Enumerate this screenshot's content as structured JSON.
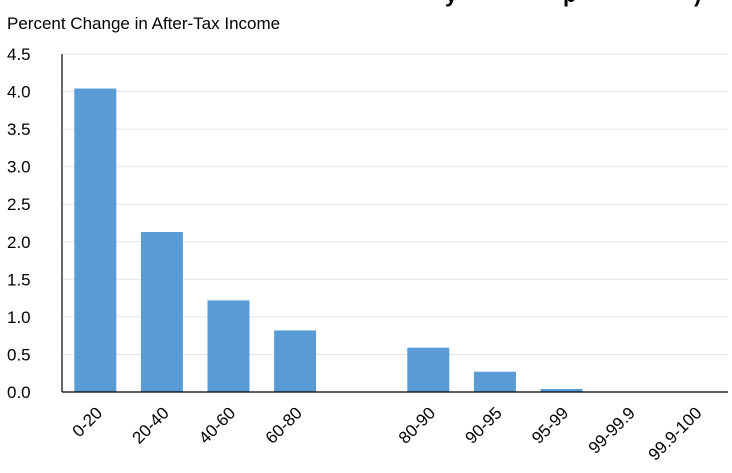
{
  "chart_data": {
    "type": "bar",
    "title": "",
    "title_partial": "...y ... ...p...)...",
    "subtitle": "Percent Change in After-Tax Income",
    "xlabel": "",
    "ylabel": "",
    "categories": [
      "0-20",
      "20-40",
      "40-60",
      "60-80",
      "",
      "80-90",
      "90-95",
      "95-99",
      "99-99.9",
      "99.9-100"
    ],
    "values": [
      4.04,
      2.13,
      1.22,
      0.82,
      null,
      0.59,
      0.27,
      0.04,
      0.0,
      0.0
    ],
    "ylim": [
      0,
      4.5
    ],
    "yticks": [
      "0.0",
      "0.5",
      "1.0",
      "1.5",
      "2.0",
      "2.5",
      "3.0",
      "3.5",
      "4.0",
      "4.5"
    ],
    "ytick_values": [
      0,
      0.5,
      1.0,
      1.5,
      2.0,
      2.5,
      3.0,
      3.5,
      4.0,
      4.5
    ],
    "grid": true,
    "legend": "none",
    "colors": {
      "bar": "#5b9bd5",
      "grid": "#e6e6e6",
      "axis": "#000000"
    }
  }
}
